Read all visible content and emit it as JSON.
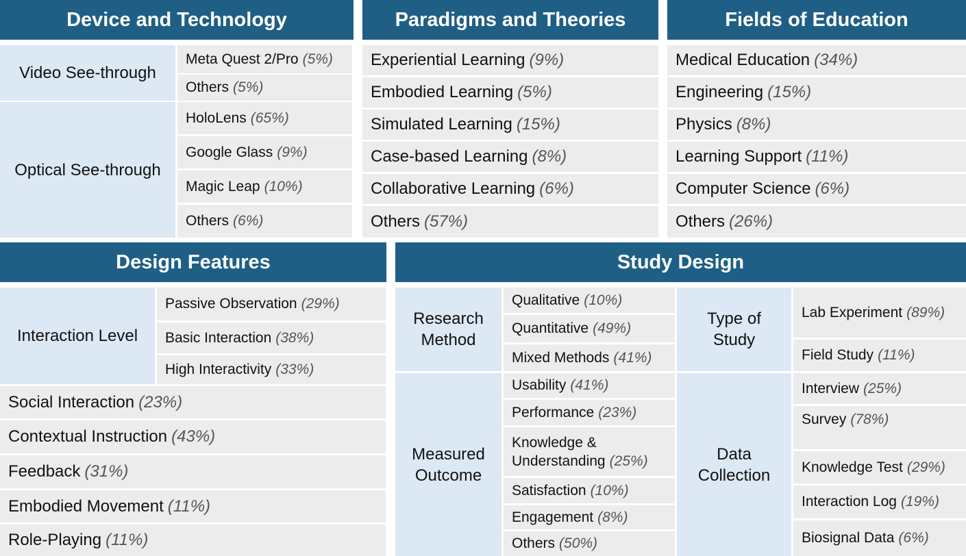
{
  "device": {
    "title": "Device and Technology",
    "vst": {
      "label": "Video See-through",
      "items": [
        {
          "name": "Meta Quest 2/Pro",
          "pct": "(5%)"
        },
        {
          "name": "Others",
          "pct": "(5%)"
        }
      ]
    },
    "ost": {
      "label": "Optical See-through",
      "items": [
        {
          "name": "HoloLens",
          "pct": "(65%)"
        },
        {
          "name": "Google Glass",
          "pct": "(9%)"
        },
        {
          "name": "Magic Leap",
          "pct": "(10%)"
        },
        {
          "name": "Others",
          "pct": "(6%)"
        }
      ]
    }
  },
  "paradigms": {
    "title": "Paradigms and Theories",
    "items": [
      {
        "name": "Experiential Learning",
        "pct": "(9%)"
      },
      {
        "name": "Embodied Learning",
        "pct": "(5%)"
      },
      {
        "name": "Simulated Learning",
        "pct": "(15%)"
      },
      {
        "name": "Case-based Learning",
        "pct": "(8%)"
      },
      {
        "name": "Collaborative Learning",
        "pct": "(6%)"
      },
      {
        "name": "Others",
        "pct": "(57%)"
      }
    ]
  },
  "fields": {
    "title": "Fields of Education",
    "items": [
      {
        "name": "Medical Education",
        "pct": "(34%)"
      },
      {
        "name": "Engineering",
        "pct": "(15%)"
      },
      {
        "name": "Physics",
        "pct": "(8%)"
      },
      {
        "name": "Learning Support",
        "pct": "(11%)"
      },
      {
        "name": "Computer Science",
        "pct": "(6%)"
      },
      {
        "name": "Others",
        "pct": "(26%)"
      }
    ]
  },
  "design": {
    "title": "Design Features",
    "interaction": {
      "label": "Interaction Level",
      "items": [
        {
          "name": "Passive Observation",
          "pct": "(29%)"
        },
        {
          "name": "Basic Interaction",
          "pct": "(38%)"
        },
        {
          "name": "High Interactivity",
          "pct": "(33%)"
        }
      ]
    },
    "items": [
      {
        "name": "Social Interaction",
        "pct": "(23%)"
      },
      {
        "name": "Contextual Instruction",
        "pct": "(43%)"
      },
      {
        "name": "Feedback",
        "pct": "(31%)"
      },
      {
        "name": "Embodied Movement",
        "pct": "(11%)"
      },
      {
        "name": "Role-Playing",
        "pct": "(11%)"
      }
    ]
  },
  "study": {
    "title": "Study Design",
    "research": {
      "label_1": "Research",
      "label_2": "Method",
      "items": [
        {
          "name": "Qualitative",
          "pct": "(10%)"
        },
        {
          "name": "Quantitative",
          "pct": "(49%)"
        },
        {
          "name": "Mixed Methods",
          "pct": "(41%)"
        }
      ]
    },
    "type": {
      "label_1": "Type of",
      "label_2": "Study",
      "items": [
        {
          "name": "Lab Experiment",
          "pct": "(89%)"
        },
        {
          "name": "Field Study",
          "pct": "(11%)"
        }
      ]
    },
    "outcome": {
      "label_1": "Measured",
      "label_2": "Outcome",
      "items": [
        {
          "name": "Usability",
          "pct": "(41%)"
        },
        {
          "name": "Performance",
          "pct": "(23%)"
        },
        {
          "name_1": "Knowledge &",
          "name_2": "Understanding",
          "pct": "(25%)"
        },
        {
          "name": "Satisfaction",
          "pct": "(10%)"
        },
        {
          "name": "Engagement",
          "pct": "(8%)"
        },
        {
          "name": "Others",
          "pct": "(50%)"
        }
      ]
    },
    "collection": {
      "label_1": "Data",
      "label_2": "Collection",
      "items": [
        {
          "name": "Interview",
          "pct": "(25%)"
        },
        {
          "name": "Survey",
          "pct": "(78%)"
        },
        {
          "name": "Knowledge Test",
          "pct": "(29%)"
        },
        {
          "name": "Interaction Log",
          "pct": "(19%)"
        },
        {
          "name": "Biosignal Data",
          "pct": "(6%)"
        }
      ]
    }
  }
}
